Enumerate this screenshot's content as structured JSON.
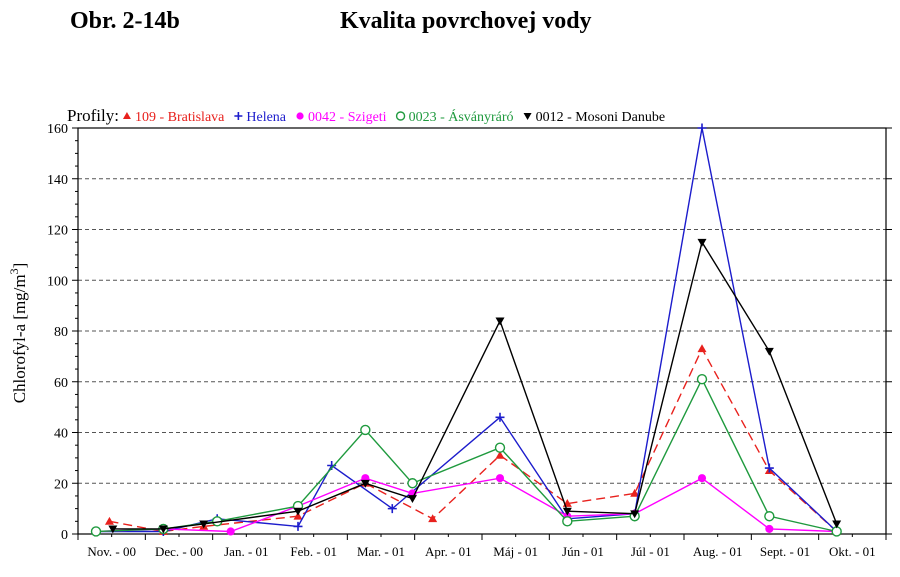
{
  "figure": {
    "label": "Obr. 2-14b",
    "title": "Kvalita povrchovej vody"
  },
  "chart_data": {
    "type": "line",
    "legend_title": "Profily:",
    "legend_position": "top",
    "ylabel": "Chlorofyl-a [mg/m",
    "ylabel_sup": "3",
    "ylabel_close": "]",
    "ylim": [
      0,
      160
    ],
    "yticks": [
      "0",
      "20",
      "40",
      "60",
      "80",
      "100",
      "120",
      "140",
      "160"
    ],
    "grid": "horizontal-dashed",
    "categories": [
      "Nov. - 00",
      "Dec. - 00",
      "Jan. - 01",
      "Feb. - 01",
      "Mar. - 01",
      "Apr. - 01",
      "Máj - 01",
      "Jún - 01",
      "Júl - 01",
      "Aug. - 01",
      "Sept. - 01",
      "Okt. - 01"
    ],
    "series": [
      {
        "name": "109 - Bratislava",
        "color": "#e8211d",
        "marker": "triangle-up",
        "dash": true,
        "points": [
          [
            0.2,
            5
          ],
          [
            1.0,
            1
          ],
          [
            1.6,
            3
          ],
          [
            3.0,
            7
          ],
          [
            4.0,
            20
          ],
          [
            5.0,
            6
          ],
          [
            6.0,
            31
          ],
          [
            7.0,
            12
          ],
          [
            8.0,
            16
          ],
          [
            9.0,
            73
          ],
          [
            10.0,
            25
          ],
          [
            11.0,
            1
          ]
        ]
      },
      {
        "name": "Helena",
        "color": "#1c1ccc",
        "marker": "plus",
        "dash": false,
        "points": [
          [
            0.0,
            1
          ],
          [
            1.0,
            1
          ],
          [
            1.8,
            6
          ],
          [
            3.0,
            3
          ],
          [
            3.5,
            27
          ],
          [
            4.4,
            10
          ],
          [
            6.0,
            46
          ],
          [
            7.0,
            6
          ],
          [
            8.0,
            8
          ],
          [
            9.0,
            160
          ],
          [
            10.0,
            26
          ],
          [
            11.0,
            1
          ]
        ]
      },
      {
        "name": "0042 - Szigeti",
        "color": "#ff00ff",
        "marker": "circle-filled",
        "dash": false,
        "points": [
          [
            0.0,
            1
          ],
          [
            1.0,
            2
          ],
          [
            2.0,
            1
          ],
          [
            3.0,
            11
          ],
          [
            4.0,
            22
          ],
          [
            4.7,
            16
          ],
          [
            6.0,
            22
          ],
          [
            7.0,
            7
          ],
          [
            8.0,
            8
          ],
          [
            9.0,
            22
          ],
          [
            10.0,
            2
          ],
          [
            11.0,
            1
          ]
        ]
      },
      {
        "name": "0023 - Ásványráró",
        "color": "#1f9a3e",
        "marker": "circle-open",
        "dash": false,
        "points": [
          [
            0.0,
            1
          ],
          [
            1.0,
            2
          ],
          [
            1.8,
            5
          ],
          [
            3.0,
            11
          ],
          [
            4.0,
            41
          ],
          [
            4.7,
            20
          ],
          [
            6.0,
            34
          ],
          [
            7.0,
            5
          ],
          [
            8.0,
            7
          ],
          [
            9.0,
            61
          ],
          [
            10.0,
            7
          ],
          [
            11.0,
            1
          ]
        ]
      },
      {
        "name": "0012 - Mosoni Danube",
        "color": "#000000",
        "marker": "triangle-down",
        "dash": false,
        "points": [
          [
            0.25,
            2
          ],
          [
            1.0,
            2
          ],
          [
            1.6,
            4
          ],
          [
            3.0,
            9
          ],
          [
            4.0,
            20
          ],
          [
            4.7,
            14
          ],
          [
            6.0,
            84
          ],
          [
            7.0,
            9
          ],
          [
            8.0,
            8
          ],
          [
            9.0,
            115
          ],
          [
            10.0,
            72
          ],
          [
            11.0,
            4
          ]
        ]
      }
    ]
  }
}
